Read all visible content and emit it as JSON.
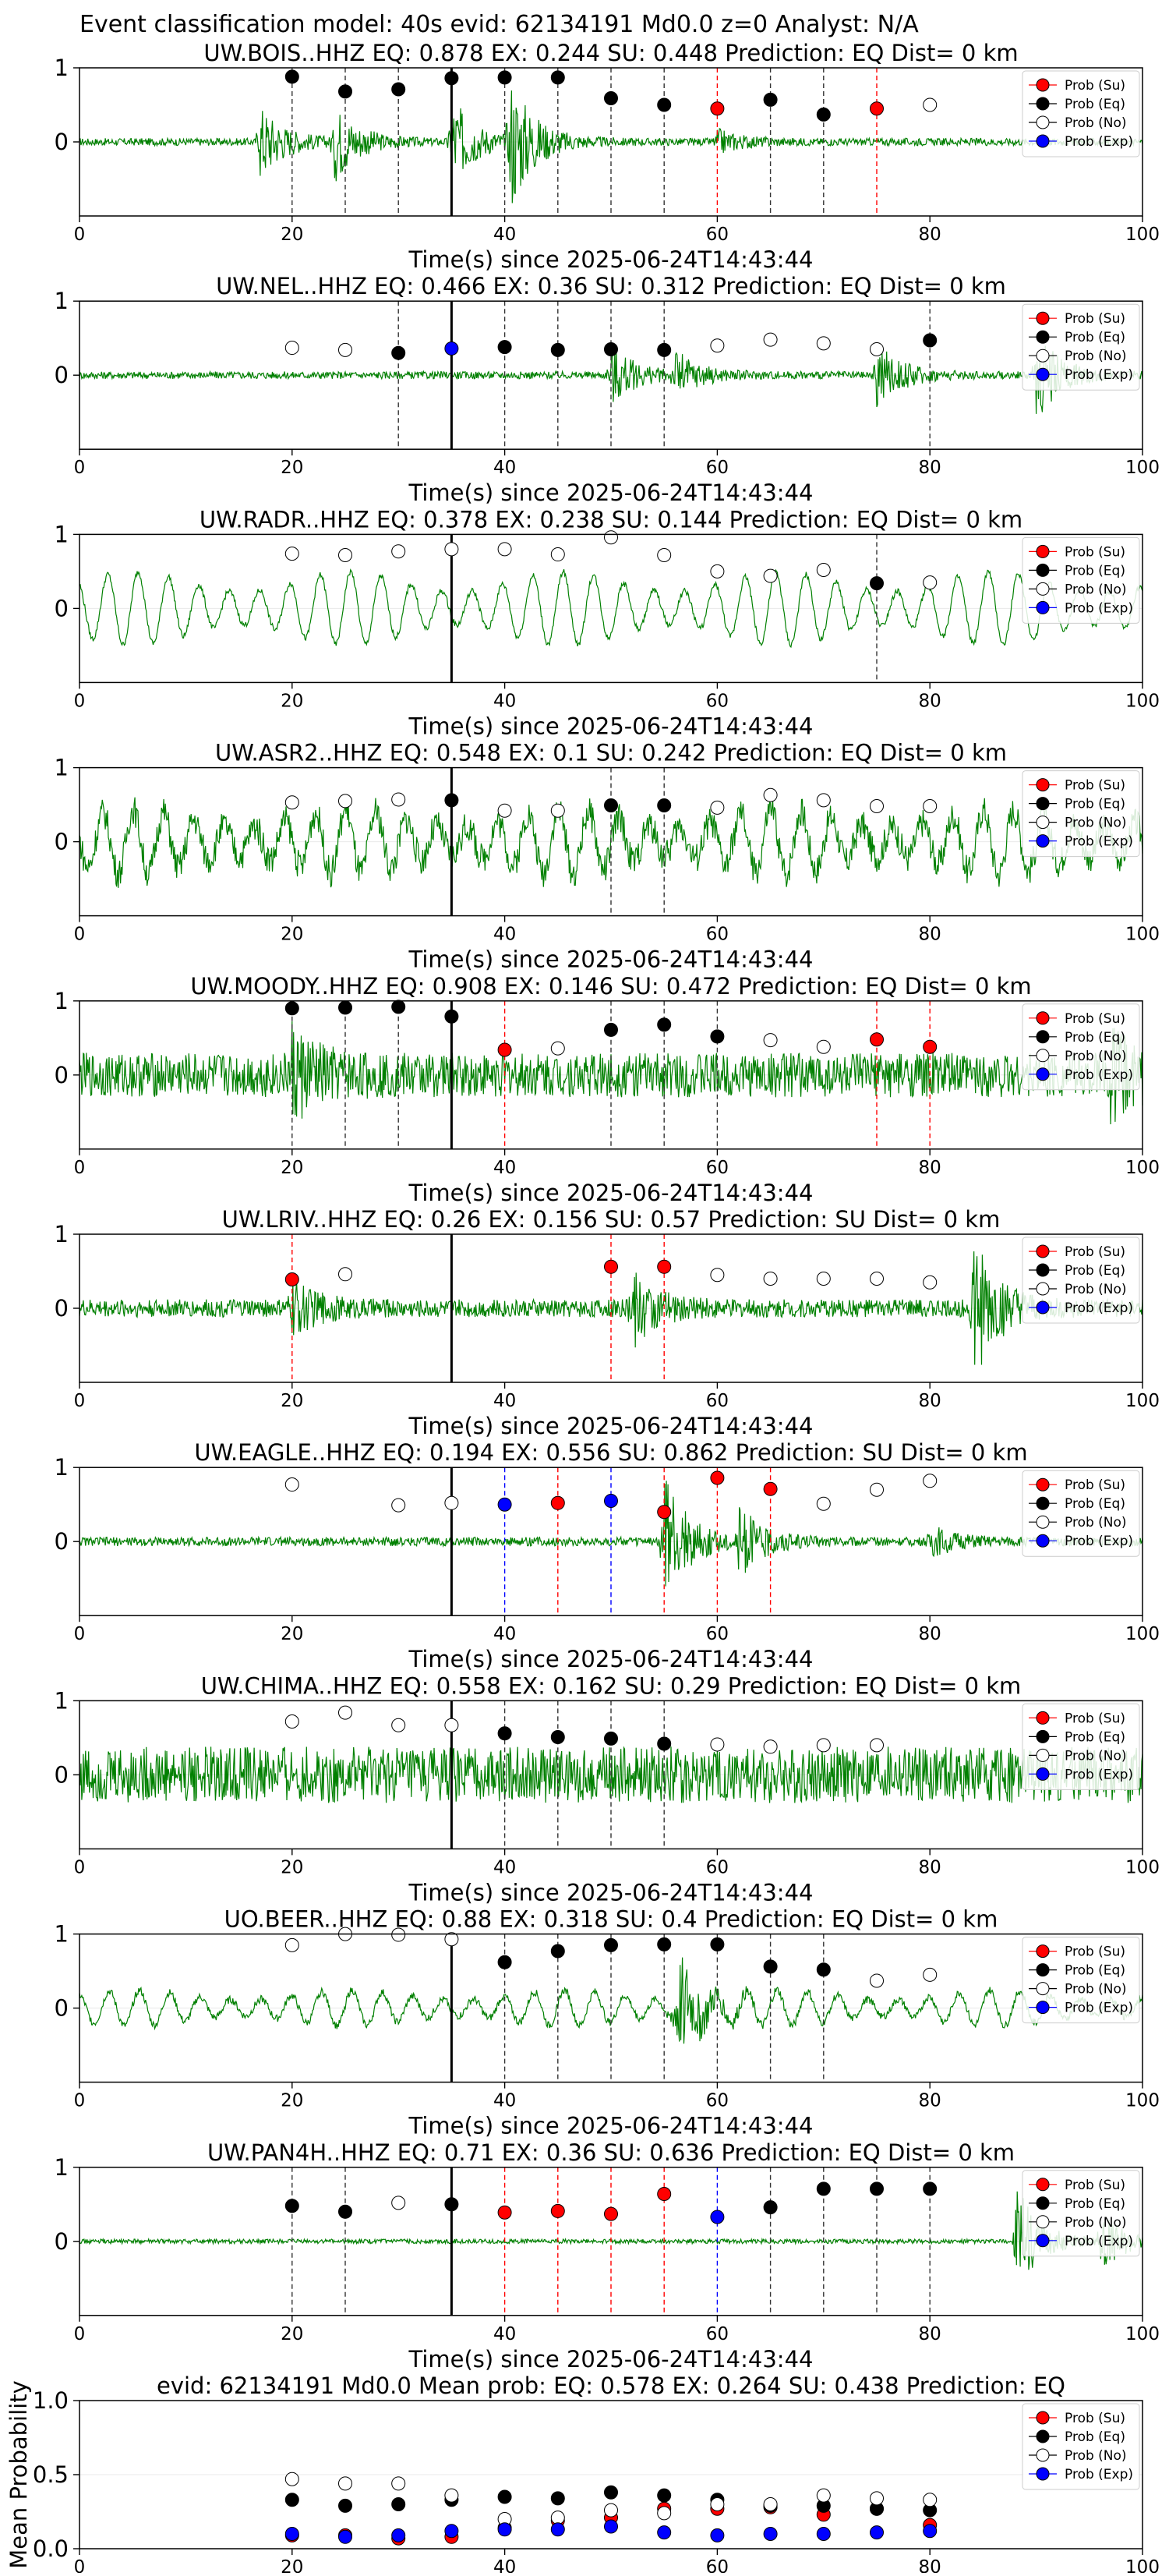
{
  "suptitle": "Event classification model: 40s evid: 62134191 Md0.0 z=0 Analyst: N/A",
  "legend": [
    "Prob (Su)",
    "Prob (Eq)",
    "Prob (No)",
    "Prob (Exp)"
  ],
  "colors": {
    "su": "#ff0000",
    "eq": "#000000",
    "no": "#ffffff",
    "exp": "#0000ff",
    "trace": "#008000",
    "tick": "#000000"
  },
  "chart_data": [
    {
      "type": "line",
      "title": "UW.BOIS..HHZ   EQ: 0.878  EX: 0.244  SU: 0.448   Prediction: EQ    Dist= 0 km",
      "xlabel": "Time(s) since 2025-06-24T14:43:44",
      "ylabel": "",
      "xlim": [
        0,
        100
      ],
      "ylim": [
        -1,
        1
      ],
      "yticks": [
        0,
        1
      ],
      "xticks": [
        0,
        20,
        40,
        60,
        80,
        100
      ],
      "arrival": 35,
      "trace": {
        "amp": 0.05,
        "bursts": [
          [
            17,
            0.5
          ],
          [
            24,
            0.5
          ],
          [
            35,
            0.6
          ],
          [
            40.5,
            0.9
          ],
          [
            60,
            0.15
          ]
        ]
      },
      "windows": [
        {
          "t": 20,
          "c": "eq",
          "v": 0.88
        },
        {
          "t": 25,
          "c": "eq",
          "v": 0.68
        },
        {
          "t": 30,
          "c": "eq",
          "v": 0.71
        },
        {
          "t": 35,
          "c": "eq",
          "v": 0.86
        },
        {
          "t": 40,
          "c": "eq",
          "v": 0.87
        },
        {
          "t": 45,
          "c": "eq",
          "v": 0.87
        },
        {
          "t": 50,
          "c": "eq",
          "v": 0.59
        },
        {
          "t": 55,
          "c": "eq",
          "v": 0.5
        },
        {
          "t": 60,
          "c": "su",
          "v": 0.45
        },
        {
          "t": 65,
          "c": "eq",
          "v": 0.57
        },
        {
          "t": 70,
          "c": "eq",
          "v": 0.37
        },
        {
          "t": 75,
          "c": "su",
          "v": 0.45
        },
        {
          "t": 80,
          "c": "no",
          "v": 0.5
        }
      ]
    },
    {
      "type": "line",
      "title": "UW.NEL..HHZ   EQ: 0.466  EX: 0.36  SU: 0.312   Prediction: EQ    Dist= 0 km",
      "xlabel": "Time(s) since 2025-06-24T14:43:44",
      "ylabel": "",
      "xlim": [
        0,
        100
      ],
      "ylim": [
        -1,
        1
      ],
      "yticks": [
        0,
        1
      ],
      "xticks": [
        0,
        20,
        40,
        60,
        80,
        100
      ],
      "arrival": 35,
      "trace": {
        "amp": 0.05,
        "bursts": [
          [
            50,
            0.4
          ],
          [
            56,
            0.3
          ],
          [
            75,
            0.45
          ],
          [
            90,
            0.6
          ]
        ]
      },
      "windows": [
        {
          "t": 20,
          "c": "no",
          "v": 0.37
        },
        {
          "t": 25,
          "c": "no",
          "v": 0.34
        },
        {
          "t": 30,
          "c": "eq",
          "v": 0.3
        },
        {
          "t": 35,
          "c": "exp",
          "v": 0.36
        },
        {
          "t": 40,
          "c": "eq",
          "v": 0.38
        },
        {
          "t": 45,
          "c": "eq",
          "v": 0.34
        },
        {
          "t": 50,
          "c": "eq",
          "v": 0.35
        },
        {
          "t": 55,
          "c": "eq",
          "v": 0.34
        },
        {
          "t": 60,
          "c": "no",
          "v": 0.4
        },
        {
          "t": 65,
          "c": "no",
          "v": 0.48
        },
        {
          "t": 70,
          "c": "no",
          "v": 0.43
        },
        {
          "t": 75,
          "c": "no",
          "v": 0.35
        },
        {
          "t": 80,
          "c": "eq",
          "v": 0.47
        }
      ]
    },
    {
      "type": "line",
      "title": "UW.RADR..HHZ   EQ: 0.378  EX: 0.238  SU: 0.144   Prediction: EQ    Dist= 0 km",
      "xlabel": "Time(s) since 2025-06-24T14:43:44",
      "ylabel": "",
      "xlim": [
        0,
        100
      ],
      "ylim": [
        -1,
        1
      ],
      "yticks": [
        0,
        1
      ],
      "xticks": [
        0,
        20,
        40,
        60,
        80,
        100
      ],
      "arrival": 35,
      "trace": {
        "amp": 0.04,
        "osc": 0.45,
        "bursts": []
      },
      "windows": [
        {
          "t": 20,
          "c": "no",
          "v": 0.74
        },
        {
          "t": 25,
          "c": "no",
          "v": 0.72
        },
        {
          "t": 30,
          "c": "no",
          "v": 0.77
        },
        {
          "t": 35,
          "c": "no",
          "v": 0.8
        },
        {
          "t": 40,
          "c": "no",
          "v": 0.8
        },
        {
          "t": 45,
          "c": "no",
          "v": 0.73
        },
        {
          "t": 50,
          "c": "no",
          "v": 0.96
        },
        {
          "t": 55,
          "c": "no",
          "v": 0.72
        },
        {
          "t": 60,
          "c": "no",
          "v": 0.5
        },
        {
          "t": 65,
          "c": "no",
          "v": 0.44
        },
        {
          "t": 70,
          "c": "no",
          "v": 0.52
        },
        {
          "t": 75,
          "c": "eq",
          "v": 0.34
        },
        {
          "t": 80,
          "c": "no",
          "v": 0.35
        }
      ]
    },
    {
      "type": "line",
      "title": "UW.ASR2..HHZ   EQ: 0.548  EX: 0.1  SU: 0.242   Prediction: EQ    Dist= 0 km",
      "xlabel": "Time(s) since 2025-06-24T14:43:44",
      "ylabel": "",
      "xlim": [
        0,
        100
      ],
      "ylim": [
        -1,
        1
      ],
      "yticks": [
        0,
        1
      ],
      "xticks": [
        0,
        20,
        40,
        60,
        80,
        100
      ],
      "arrival": 35,
      "trace": {
        "amp": 0.2,
        "osc": 0.4,
        "bursts": []
      },
      "windows": [
        {
          "t": 20,
          "c": "no",
          "v": 0.53
        },
        {
          "t": 25,
          "c": "no",
          "v": 0.55
        },
        {
          "t": 30,
          "c": "no",
          "v": 0.57
        },
        {
          "t": 35,
          "c": "eq",
          "v": 0.56
        },
        {
          "t": 40,
          "c": "no",
          "v": 0.42
        },
        {
          "t": 45,
          "c": "no",
          "v": 0.42
        },
        {
          "t": 50,
          "c": "eq",
          "v": 0.49
        },
        {
          "t": 55,
          "c": "eq",
          "v": 0.49
        },
        {
          "t": 60,
          "c": "no",
          "v": 0.46
        },
        {
          "t": 65,
          "c": "no",
          "v": 0.63
        },
        {
          "t": 70,
          "c": "no",
          "v": 0.56
        },
        {
          "t": 75,
          "c": "no",
          "v": 0.48
        },
        {
          "t": 80,
          "c": "no",
          "v": 0.48
        }
      ]
    },
    {
      "type": "line",
      "title": "UW.MOODY..HHZ   EQ: 0.908  EX: 0.146  SU: 0.472   Prediction: EQ    Dist= 0 km",
      "xlabel": "Time(s) since 2025-06-24T14:43:44",
      "ylabel": "",
      "xlim": [
        0,
        100
      ],
      "ylim": [
        -1,
        1
      ],
      "yticks": [
        0,
        1
      ],
      "xticks": [
        0,
        20,
        40,
        60,
        80,
        100
      ],
      "arrival": 35,
      "trace": {
        "amp": 0.3,
        "bursts": [
          [
            20,
            0.5
          ],
          [
            97,
            0.5
          ]
        ]
      },
      "windows": [
        {
          "t": 20,
          "c": "eq",
          "v": 0.9
        },
        {
          "t": 25,
          "c": "eq",
          "v": 0.91
        },
        {
          "t": 30,
          "c": "eq",
          "v": 0.92
        },
        {
          "t": 35,
          "c": "eq",
          "v": 0.79
        },
        {
          "t": 40,
          "c": "su",
          "v": 0.34
        },
        {
          "t": 45,
          "c": "no",
          "v": 0.36
        },
        {
          "t": 50,
          "c": "eq",
          "v": 0.61
        },
        {
          "t": 55,
          "c": "eq",
          "v": 0.68
        },
        {
          "t": 60,
          "c": "eq",
          "v": 0.52
        },
        {
          "t": 65,
          "c": "no",
          "v": 0.47
        },
        {
          "t": 70,
          "c": "no",
          "v": 0.38
        },
        {
          "t": 75,
          "c": "su",
          "v": 0.48
        },
        {
          "t": 80,
          "c": "su",
          "v": 0.38
        }
      ]
    },
    {
      "type": "line",
      "title": "UW.LRIV..HHZ   EQ: 0.26  EX: 0.156  SU: 0.57   Prediction: SU    Dist= 0 km",
      "xlabel": "Time(s) since 2025-06-24T14:43:44",
      "ylabel": "",
      "xlim": [
        0,
        100
      ],
      "ylim": [
        -1,
        1
      ],
      "yticks": [
        0,
        1
      ],
      "xticks": [
        0,
        20,
        40,
        60,
        80,
        100
      ],
      "arrival": 35,
      "trace": {
        "amp": 0.12,
        "bursts": [
          [
            20,
            0.35
          ],
          [
            52,
            0.5
          ],
          [
            84,
            1.0
          ]
        ]
      },
      "windows": [
        {
          "t": 20,
          "c": "su",
          "v": 0.39
        },
        {
          "t": 25,
          "c": "no",
          "v": 0.46
        },
        {
          "t": 50,
          "c": "su",
          "v": 0.56
        },
        {
          "t": 55,
          "c": "su",
          "v": 0.56
        },
        {
          "t": 60,
          "c": "no",
          "v": 0.45
        },
        {
          "t": 65,
          "c": "no",
          "v": 0.4
        },
        {
          "t": 70,
          "c": "no",
          "v": 0.4
        },
        {
          "t": 75,
          "c": "no",
          "v": 0.4
        },
        {
          "t": 80,
          "c": "no",
          "v": 0.35
        }
      ]
    },
    {
      "type": "line",
      "title": "UW.EAGLE..HHZ   EQ: 0.194  EX: 0.556  SU: 0.862   Prediction: SU    Dist= 0 km",
      "xlabel": "Time(s) since 2025-06-24T14:43:44",
      "ylabel": "",
      "xlim": [
        0,
        100
      ],
      "ylim": [
        -1,
        1
      ],
      "yticks": [
        0,
        1
      ],
      "xticks": [
        0,
        20,
        40,
        60,
        80,
        100
      ],
      "arrival": 35,
      "trace": {
        "amp": 0.06,
        "bursts": [
          [
            55,
            0.9
          ],
          [
            62,
            0.45
          ],
          [
            80,
            0.2
          ]
        ]
      },
      "windows": [
        {
          "t": 20,
          "c": "no",
          "v": 0.77
        },
        {
          "t": 30,
          "c": "no",
          "v": 0.49
        },
        {
          "t": 35,
          "c": "no",
          "v": 0.52
        },
        {
          "t": 40,
          "c": "exp",
          "v": 0.5
        },
        {
          "t": 45,
          "c": "su",
          "v": 0.52
        },
        {
          "t": 50,
          "c": "exp",
          "v": 0.55
        },
        {
          "t": 55,
          "c": "su",
          "v": 0.4
        },
        {
          "t": 60,
          "c": "su",
          "v": 0.86
        },
        {
          "t": 65,
          "c": "su",
          "v": 0.71
        },
        {
          "t": 70,
          "c": "no",
          "v": 0.51
        },
        {
          "t": 75,
          "c": "no",
          "v": 0.7
        },
        {
          "t": 80,
          "c": "no",
          "v": 0.82
        }
      ]
    },
    {
      "type": "line",
      "title": "UW.CHIMA..HHZ   EQ: 0.558  EX: 0.162  SU: 0.29   Prediction: EQ    Dist= 0 km",
      "xlabel": "Time(s) since 2025-06-24T14:43:44",
      "ylabel": "",
      "xlim": [
        0,
        100
      ],
      "ylim": [
        -1,
        1
      ],
      "yticks": [
        0,
        1
      ],
      "xticks": [
        0,
        20,
        40,
        60,
        80,
        100
      ],
      "arrival": 35,
      "trace": {
        "amp": 0.38,
        "bursts": []
      },
      "windows": [
        {
          "t": 20,
          "c": "no",
          "v": 0.72
        },
        {
          "t": 25,
          "c": "no",
          "v": 0.84
        },
        {
          "t": 30,
          "c": "no",
          "v": 0.67
        },
        {
          "t": 35,
          "c": "no",
          "v": 0.67
        },
        {
          "t": 40,
          "c": "eq",
          "v": 0.56
        },
        {
          "t": 45,
          "c": "eq",
          "v": 0.51
        },
        {
          "t": 50,
          "c": "eq",
          "v": 0.49
        },
        {
          "t": 55,
          "c": "eq",
          "v": 0.42
        },
        {
          "t": 60,
          "c": "no",
          "v": 0.41
        },
        {
          "t": 65,
          "c": "no",
          "v": 0.38
        },
        {
          "t": 70,
          "c": "no",
          "v": 0.4
        },
        {
          "t": 75,
          "c": "no",
          "v": 0.4
        }
      ]
    },
    {
      "type": "line",
      "title": "UO.BEER..HHZ   EQ: 0.88  EX: 0.318  SU: 0.4   Prediction: EQ    Dist= 0 km",
      "xlabel": "Time(s) since 2025-06-24T14:43:44",
      "ylabel": "",
      "xlim": [
        0,
        100
      ],
      "ylim": [
        -1,
        1
      ],
      "yticks": [
        0,
        1
      ],
      "xticks": [
        0,
        20,
        40,
        60,
        80,
        100
      ],
      "arrival": 35,
      "trace": {
        "amp": 0.05,
        "osc": 0.22,
        "bursts": [
          [
            56,
            0.8
          ]
        ]
      },
      "windows": [
        {
          "t": 20,
          "c": "no",
          "v": 0.85
        },
        {
          "t": 25,
          "c": "no",
          "v": 1.0
        },
        {
          "t": 30,
          "c": "no",
          "v": 0.99
        },
        {
          "t": 35,
          "c": "no",
          "v": 0.93
        },
        {
          "t": 40,
          "c": "eq",
          "v": 0.62
        },
        {
          "t": 45,
          "c": "eq",
          "v": 0.77
        },
        {
          "t": 50,
          "c": "eq",
          "v": 0.85
        },
        {
          "t": 55,
          "c": "eq",
          "v": 0.86
        },
        {
          "t": 60,
          "c": "eq",
          "v": 0.86
        },
        {
          "t": 65,
          "c": "eq",
          "v": 0.56
        },
        {
          "t": 70,
          "c": "eq",
          "v": 0.52
        },
        {
          "t": 75,
          "c": "no",
          "v": 0.37
        },
        {
          "t": 80,
          "c": "no",
          "v": 0.45
        }
      ]
    },
    {
      "type": "line",
      "title": "UW.PAN4H..HHZ   EQ: 0.71  EX: 0.36  SU: 0.636   Prediction: EQ    Dist= 0 km",
      "xlabel": "Time(s) since 2025-06-24T14:43:44",
      "ylabel": "",
      "xlim": [
        0,
        100
      ],
      "ylim": [
        -1,
        1
      ],
      "yticks": [
        0,
        1
      ],
      "xticks": [
        0,
        20,
        40,
        60,
        80,
        100
      ],
      "arrival": 35,
      "trace": {
        "amp": 0.03,
        "bursts": [
          [
            88,
            0.8
          ],
          [
            96,
            0.4
          ]
        ]
      },
      "windows": [
        {
          "t": 20,
          "c": "eq",
          "v": 0.48
        },
        {
          "t": 25,
          "c": "eq",
          "v": 0.4
        },
        {
          "t": 30,
          "c": "no",
          "v": 0.52
        },
        {
          "t": 35,
          "c": "eq",
          "v": 0.5
        },
        {
          "t": 40,
          "c": "su",
          "v": 0.39
        },
        {
          "t": 45,
          "c": "su",
          "v": 0.41
        },
        {
          "t": 50,
          "c": "su",
          "v": 0.37
        },
        {
          "t": 55,
          "c": "su",
          "v": 0.64
        },
        {
          "t": 60,
          "c": "exp",
          "v": 0.33
        },
        {
          "t": 65,
          "c": "eq",
          "v": 0.46
        },
        {
          "t": 70,
          "c": "eq",
          "v": 0.71
        },
        {
          "t": 75,
          "c": "eq",
          "v": 0.71
        },
        {
          "t": 80,
          "c": "eq",
          "v": 0.71
        }
      ]
    },
    {
      "type": "scatter",
      "title": "evid: 62134191  Md0.0   Mean prob:   EQ: 0.578  EX: 0.264  SU: 0.438   Prediction: EQ",
      "xlabel": "",
      "ylabel": "Mean Probability",
      "xlim": [
        0,
        100
      ],
      "ylim": [
        0,
        1
      ],
      "yticks": [
        0.0,
        0.5,
        1.0
      ],
      "ytick_labels": [
        "0.0",
        "0.5",
        "1.0"
      ],
      "xticks": [
        0,
        20,
        40,
        60,
        80,
        100
      ],
      "x": [
        20,
        25,
        30,
        35,
        40,
        45,
        50,
        55,
        60,
        65,
        70,
        75,
        80
      ],
      "series": [
        {
          "name": "Prob (Su)",
          "key": "su",
          "values": [
            0.09,
            0.09,
            0.07,
            0.08,
            0.14,
            0.19,
            0.21,
            0.27,
            0.27,
            0.28,
            0.23,
            0.27,
            0.16
          ]
        },
        {
          "name": "Prob (Eq)",
          "key": "eq",
          "values": [
            0.33,
            0.29,
            0.3,
            0.33,
            0.35,
            0.34,
            0.38,
            0.36,
            0.33,
            0.29,
            0.29,
            0.27,
            0.26
          ]
        },
        {
          "name": "Prob (No)",
          "key": "no",
          "values": [
            0.47,
            0.44,
            0.44,
            0.36,
            0.2,
            0.21,
            0.26,
            0.24,
            0.3,
            0.3,
            0.36,
            0.34,
            0.33
          ]
        },
        {
          "name": "Prob (Exp)",
          "key": "exp",
          "values": [
            0.1,
            0.08,
            0.09,
            0.12,
            0.13,
            0.13,
            0.15,
            0.11,
            0.09,
            0.1,
            0.1,
            0.11,
            0.12
          ]
        }
      ]
    }
  ]
}
